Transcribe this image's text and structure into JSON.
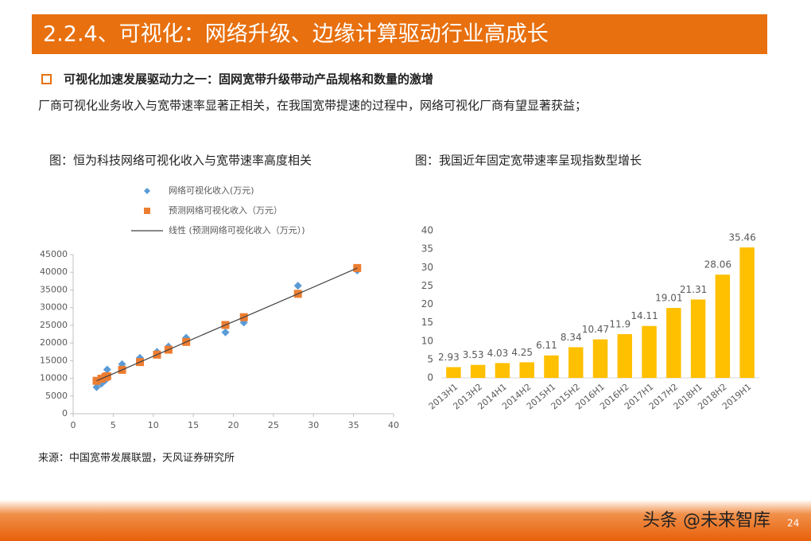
{
  "header": {
    "title": "2.2.4、可视化：网络升级、边缘计算驱动行业高成长"
  },
  "bullet": "可视化加速发展驱动力之一：固网宽带升级带动产品规格和数量的激增",
  "body": "厂商可视化业务收入与宽带速率显著正相关，在我国宽带提速的过程中，网络可视化厂商有望显著获益；",
  "source": "来源：中国宽带发展联盟，天风证券研究所",
  "footer": {
    "watermark": "头条 @未来智库",
    "page": "24"
  },
  "chart_data": [
    {
      "type": "scatter",
      "title": "图：恒为科技网络可视化收入与宽带速率高度相关",
      "x": [
        2.93,
        3.53,
        4.03,
        4.25,
        6.11,
        8.34,
        10.47,
        11.9,
        14.11,
        19.01,
        21.31,
        28.06,
        35.46
      ],
      "series": [
        {
          "name": "网络可视化收入(万元)",
          "color": "#5B9BD5",
          "marker": "diamond",
          "values": [
            7500,
            8500,
            9500,
            12500,
            14000,
            15800,
            17500,
            19000,
            21500,
            23000,
            25800,
            36200,
            40500
          ]
        },
        {
          "name": "预测网络可视化收入（万元）",
          "color": "#ED7D31",
          "marker": "square",
          "values": [
            9300,
            9900,
            10400,
            10600,
            12400,
            14600,
            16700,
            18100,
            20300,
            25100,
            27300,
            33900,
            41200
          ]
        },
        {
          "name": "线性 (预测网络可视化收入（万元）)",
          "color": "#404040",
          "marker": "line",
          "values": [
            9300,
            9900,
            10400,
            10600,
            12400,
            14600,
            16700,
            18100,
            20300,
            25100,
            27300,
            33900,
            41200
          ]
        }
      ],
      "xlim": [
        0,
        40
      ],
      "xticks": [
        0,
        5,
        10,
        15,
        20,
        25,
        30,
        35,
        40
      ],
      "ylim": [
        0,
        45000
      ],
      "yticks": [
        0,
        5000,
        10000,
        15000,
        20000,
        25000,
        30000,
        35000,
        40000,
        45000
      ],
      "legend": "top",
      "grid": false
    },
    {
      "type": "bar",
      "title": "图：我国近年固定宽带速率呈现指数型增长",
      "categories": [
        "2013H1",
        "2013H2",
        "2014H1",
        "2014H2",
        "2015H1",
        "2015H2",
        "2016H1",
        "2016H2",
        "2017H1",
        "2017H2",
        "2018H1",
        "2018H2",
        "2019H1"
      ],
      "values": [
        2.93,
        3.53,
        4.03,
        4.25,
        6.11,
        8.34,
        10.47,
        11.9,
        14.11,
        19.01,
        21.31,
        28.06,
        35.46
      ],
      "color": "#FFC000",
      "ylim": [
        0,
        40
      ],
      "yticks": [
        0,
        5,
        10,
        15,
        20,
        25,
        30,
        35,
        40
      ],
      "grid": false
    }
  ]
}
